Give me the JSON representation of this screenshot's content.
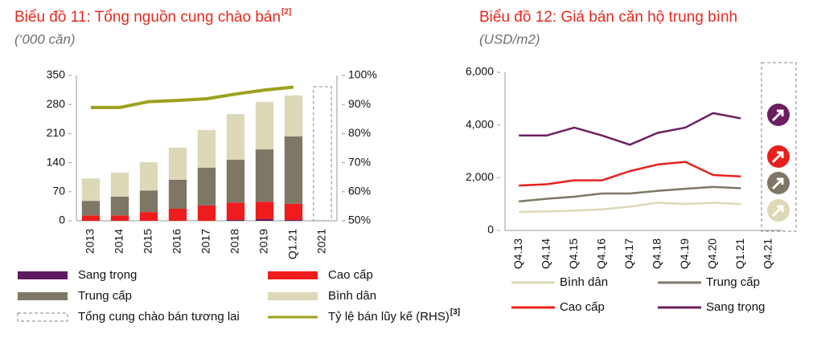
{
  "chart_data": [
    {
      "type": "bar",
      "title": "Biểu đồ 11: Tổng nguồn cung chào bán",
      "title_note": "[2]",
      "subtitle": "(‘000 căn)",
      "categories": [
        "2013",
        "2014",
        "2015",
        "2016",
        "2017",
        "2018",
        "2019",
        "Q1.21",
        "2021"
      ],
      "stacked": true,
      "ylim": [
        0,
        350
      ],
      "yticks": [
        0,
        70,
        140,
        210,
        280,
        350
      ],
      "y2lim": [
        50,
        100
      ],
      "y2ticks": [
        {
          "value": 50,
          "label": "50%"
        },
        {
          "value": 60,
          "label": "60%"
        },
        {
          "value": 70,
          "label": "70%"
        },
        {
          "value": 80,
          "label": "80%"
        },
        {
          "value": 90,
          "label": "90%"
        },
        {
          "value": 100,
          "label": "100%"
        }
      ],
      "series": [
        {
          "name": "Sang trọng",
          "color": "#5e1a5e",
          "values": [
            0,
            0,
            0,
            0,
            0,
            2,
            4,
            2,
            null
          ]
        },
        {
          "name": "Cao cấp",
          "color": "#ee1c1c",
          "values": [
            13,
            13,
            21,
            29,
            37,
            42,
            42,
            39,
            null
          ]
        },
        {
          "name": "Trung cấp",
          "color": "#7f7766",
          "values": [
            35,
            45,
            52,
            70,
            91,
            103,
            126,
            162,
            null
          ]
        },
        {
          "name": "Bình dân",
          "color": "#ddd8b8",
          "values": [
            54,
            58,
            68,
            77,
            91,
            110,
            114,
            99,
            null
          ]
        },
        {
          "name": "Tổng cung chào bán tương lai",
          "color": "#8a8570",
          "line_style": "dashed",
          "values": [
            null,
            null,
            null,
            null,
            null,
            null,
            null,
            null,
            323
          ]
        },
        {
          "name": "Tỷ lệ bán lũy kế (RHS)",
          "note": "[3]",
          "color": "#9ea01f",
          "axis": "y2",
          "values": [
            89,
            89,
            91,
            91.4,
            92,
            93.6,
            95,
            96,
            null
          ]
        }
      ]
    },
    {
      "type": "line",
      "title": "Biểu đồ 12: Giá bán căn hộ trung bình",
      "subtitle": "(USD/m2)",
      "categories": [
        "Q4.13",
        "Q4.14",
        "Q4.15",
        "Q4.16",
        "Q4.17",
        "Q4.18",
        "Q4.19",
        "Q4.20",
        "Q1.21",
        "Q4.21"
      ],
      "ylim": [
        0,
        6000
      ],
      "yticks": [
        {
          "value": 0,
          "label": "0"
        },
        {
          "value": 2000,
          "label": "2,000"
        },
        {
          "value": 4000,
          "label": "4,000"
        },
        {
          "value": 6000,
          "label": "6,000"
        }
      ],
      "series": [
        {
          "name": "Bình dân",
          "color": "#ddd8b8",
          "values": [
            700,
            720,
            750,
            800,
            900,
            1050,
            1000,
            1050,
            1000,
            null
          ]
        },
        {
          "name": "Trung cấp",
          "color": "#7f7766",
          "values": [
            1100,
            1200,
            1280,
            1400,
            1400,
            1500,
            1580,
            1650,
            1600,
            null
          ]
        },
        {
          "name": "Cao cấp",
          "color": "#e8201c",
          "values": [
            1700,
            1750,
            1900,
            1900,
            2250,
            2500,
            2600,
            2100,
            2050,
            null
          ]
        },
        {
          "name": "Sang trọng",
          "color": "#6b1f5e",
          "values": [
            3600,
            3600,
            3900,
            3600,
            3250,
            3700,
            3900,
            4450,
            4250,
            null
          ]
        }
      ]
    }
  ]
}
